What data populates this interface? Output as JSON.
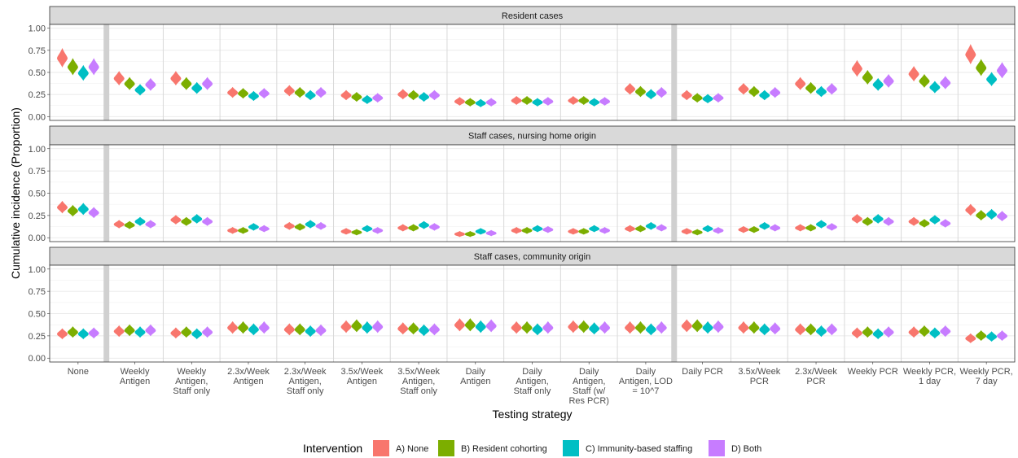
{
  "chart_data": {
    "type": "violin",
    "ylabel": "Cumulative incidence (Proportion)",
    "xlabel": "Testing strategy",
    "ylim": [
      0,
      1
    ],
    "yticks": [
      0,
      0.25,
      0.5,
      0.75,
      1
    ],
    "ytick_labels": [
      "0.00",
      "0.25",
      "0.50",
      "0.75",
      "1.00"
    ],
    "grid": true,
    "legend_position": "bottom",
    "legend_title": "Intervention",
    "series": [
      {
        "name": "A) None",
        "color": "#F8766D"
      },
      {
        "name": "B) Resident cohorting",
        "color": "#7CAE00"
      },
      {
        "name": "C) Immunity-based staffing",
        "color": "#00BFC4"
      },
      {
        "name": "D) Both",
        "color": "#C77CFF"
      }
    ],
    "categories": [
      [
        "None"
      ],
      [
        "Weekly",
        "Antigen"
      ],
      [
        "Weekly",
        "Antigen,",
        "Staff only"
      ],
      [
        "2.3x/Week",
        "Antigen"
      ],
      [
        "2.3x/Week",
        "Antigen,",
        "Staff only"
      ],
      [
        "3.5x/Week",
        "Antigen"
      ],
      [
        "3.5x/Week",
        "Antigen,",
        "Staff only"
      ],
      [
        "Daily",
        "Antigen"
      ],
      [
        "Daily",
        "Antigen,",
        "Staff only"
      ],
      [
        "Daily",
        "Antigen,",
        "Staff (w/",
        "Res PCR)"
      ],
      [
        "Daily",
        "Antigen, LOD",
        "= 10^7"
      ],
      [
        "Daily PCR"
      ],
      [
        "3.5x/Week",
        "PCR"
      ],
      [
        "2.3x/Week",
        "PCR"
      ],
      [
        "Weekly PCR"
      ],
      [
        "Weekly PCR,",
        "1 day"
      ],
      [
        "Weekly PCR,",
        "7 day"
      ]
    ],
    "separators_after": [
      0,
      10
    ],
    "panels": [
      {
        "title": "Resident cases",
        "medians": [
          [
            0.66,
            0.56,
            0.49,
            0.56
          ],
          [
            0.43,
            0.37,
            0.3,
            0.36
          ],
          [
            0.43,
            0.37,
            0.32,
            0.37
          ],
          [
            0.27,
            0.26,
            0.23,
            0.26
          ],
          [
            0.29,
            0.27,
            0.24,
            0.27
          ],
          [
            0.24,
            0.22,
            0.19,
            0.21
          ],
          [
            0.25,
            0.24,
            0.22,
            0.24
          ],
          [
            0.17,
            0.16,
            0.15,
            0.16
          ],
          [
            0.18,
            0.18,
            0.16,
            0.17
          ],
          [
            0.18,
            0.18,
            0.16,
            0.17
          ],
          [
            0.31,
            0.28,
            0.25,
            0.27
          ],
          [
            0.24,
            0.21,
            0.2,
            0.21
          ],
          [
            0.31,
            0.28,
            0.24,
            0.27
          ],
          [
            0.37,
            0.32,
            0.28,
            0.31
          ],
          [
            0.54,
            0.44,
            0.36,
            0.4
          ],
          [
            0.48,
            0.4,
            0.33,
            0.38
          ],
          [
            0.7,
            0.55,
            0.42,
            0.52
          ]
        ]
      },
      {
        "title": "Staff cases, nursing home origin",
        "medians": [
          [
            0.34,
            0.3,
            0.32,
            0.28
          ],
          [
            0.15,
            0.14,
            0.18,
            0.15
          ],
          [
            0.2,
            0.18,
            0.21,
            0.18
          ],
          [
            0.08,
            0.08,
            0.12,
            0.1
          ],
          [
            0.13,
            0.12,
            0.15,
            0.13
          ],
          [
            0.07,
            0.06,
            0.1,
            0.08
          ],
          [
            0.11,
            0.11,
            0.14,
            0.12
          ],
          [
            0.04,
            0.04,
            0.07,
            0.05
          ],
          [
            0.08,
            0.08,
            0.1,
            0.09
          ],
          [
            0.07,
            0.07,
            0.1,
            0.08
          ],
          [
            0.1,
            0.1,
            0.13,
            0.11
          ],
          [
            0.07,
            0.06,
            0.1,
            0.08
          ],
          [
            0.09,
            0.09,
            0.13,
            0.11
          ],
          [
            0.11,
            0.11,
            0.15,
            0.12
          ],
          [
            0.21,
            0.18,
            0.21,
            0.18
          ],
          [
            0.18,
            0.16,
            0.2,
            0.16
          ],
          [
            0.31,
            0.25,
            0.26,
            0.24
          ]
        ]
      },
      {
        "title": "Staff cases, community origin",
        "medians": [
          [
            0.27,
            0.29,
            0.27,
            0.28
          ],
          [
            0.3,
            0.31,
            0.29,
            0.31
          ],
          [
            0.28,
            0.29,
            0.27,
            0.29
          ],
          [
            0.34,
            0.34,
            0.32,
            0.34
          ],
          [
            0.32,
            0.32,
            0.3,
            0.31
          ],
          [
            0.35,
            0.36,
            0.34,
            0.35
          ],
          [
            0.33,
            0.33,
            0.31,
            0.32
          ],
          [
            0.37,
            0.37,
            0.35,
            0.36
          ],
          [
            0.34,
            0.34,
            0.32,
            0.34
          ],
          [
            0.35,
            0.35,
            0.33,
            0.34
          ],
          [
            0.34,
            0.34,
            0.32,
            0.34
          ],
          [
            0.36,
            0.36,
            0.34,
            0.35
          ],
          [
            0.34,
            0.34,
            0.32,
            0.33
          ],
          [
            0.32,
            0.32,
            0.3,
            0.32
          ],
          [
            0.28,
            0.29,
            0.27,
            0.29
          ],
          [
            0.29,
            0.3,
            0.28,
            0.3
          ],
          [
            0.22,
            0.25,
            0.24,
            0.25
          ]
        ]
      }
    ]
  }
}
